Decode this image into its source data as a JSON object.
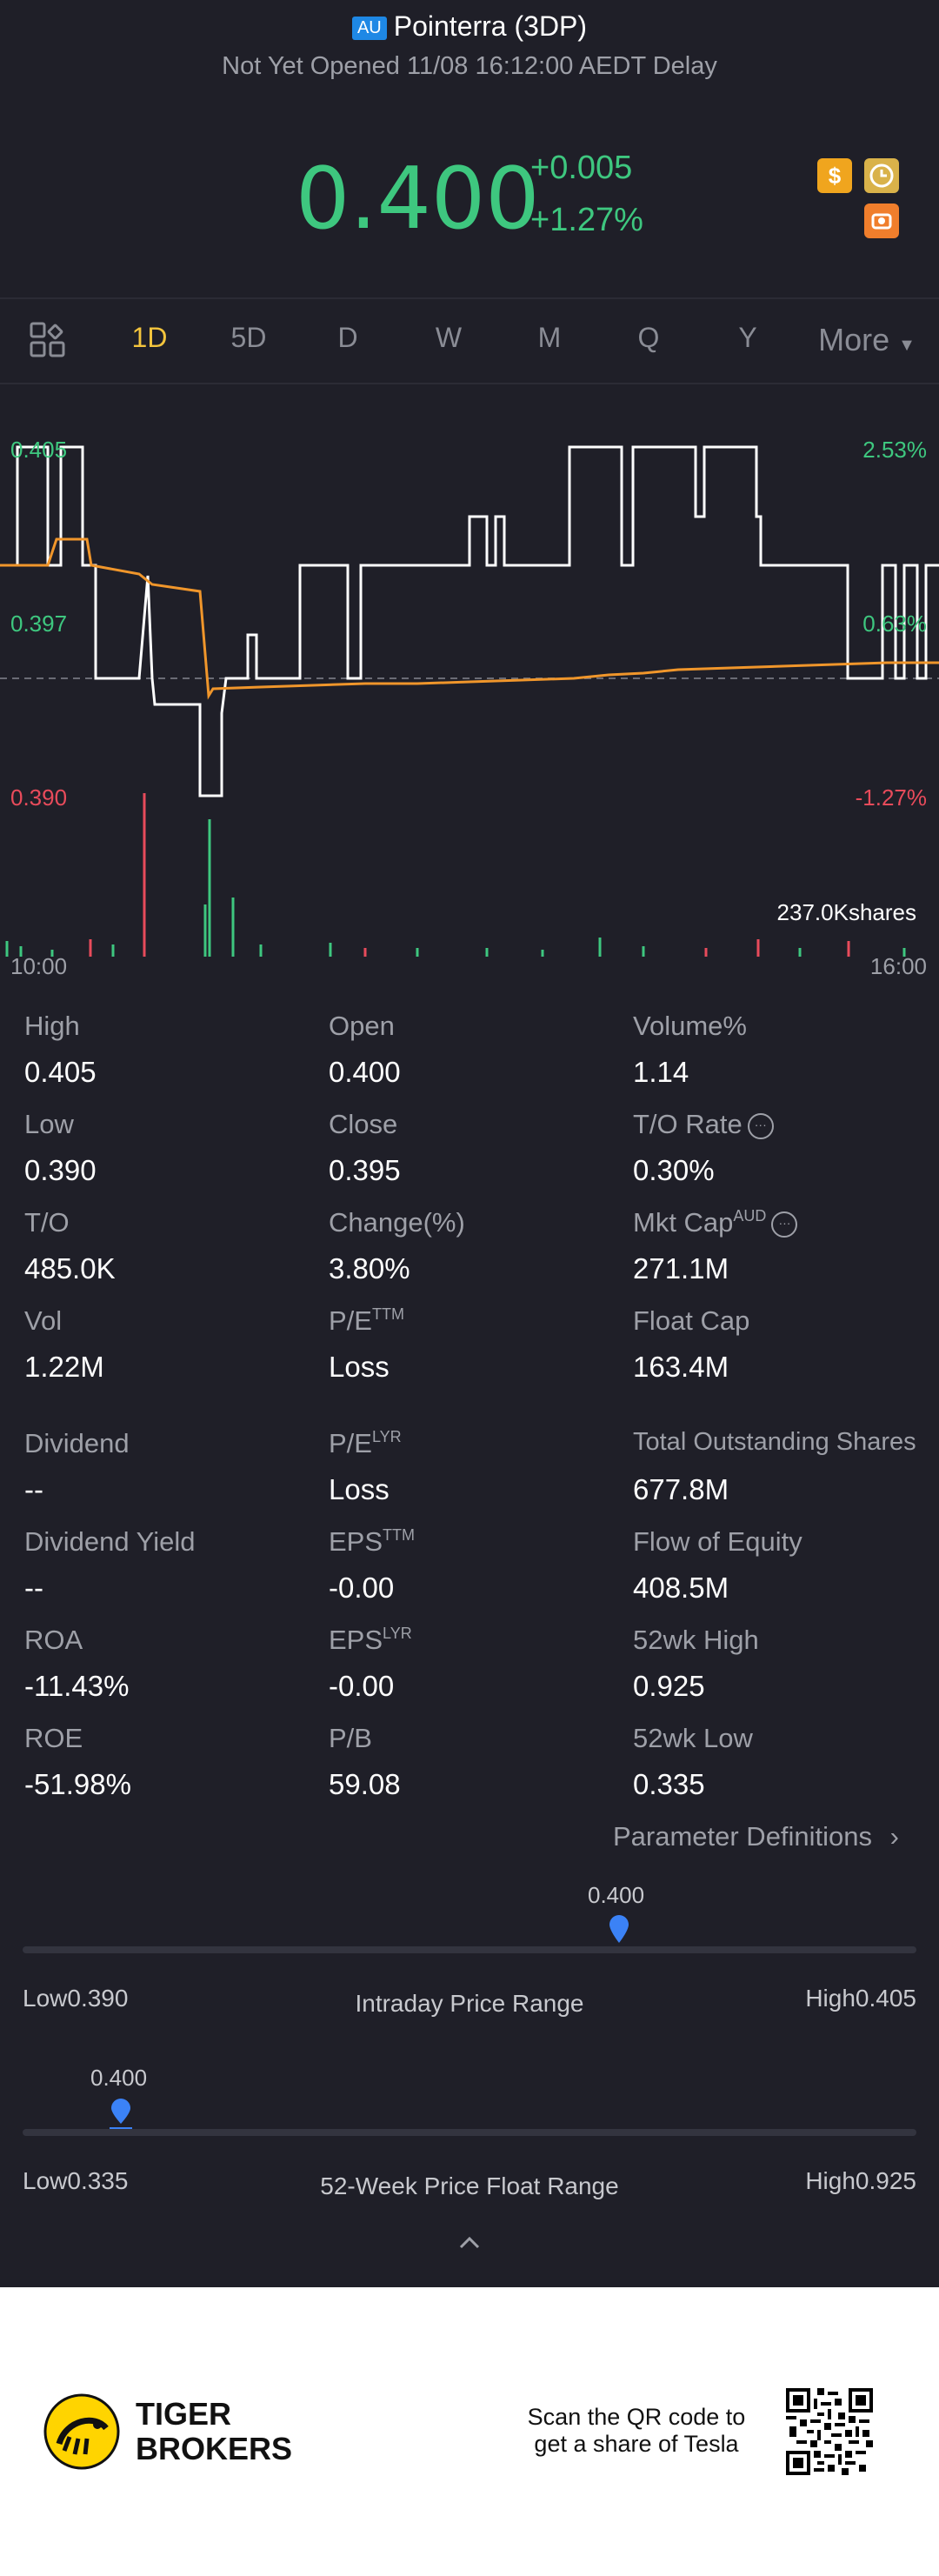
{
  "header": {
    "market_badge": "AU",
    "title": "Pointerra (3DP)",
    "status": "Not Yet Opened 11/08 16:12:00 AEDT Delay"
  },
  "quote": {
    "price": "0.400",
    "change": "+0.005",
    "change_pct": "+1.27%",
    "up_color": "#3ec77f",
    "icons": [
      "dollar-icon",
      "clock-icon",
      "camera-icon"
    ]
  },
  "tabs": {
    "items": [
      "1D",
      "5D",
      "D",
      "W",
      "M",
      "Q",
      "Y"
    ],
    "active": "1D",
    "more": "More"
  },
  "chart": {
    "left_top": "0.405",
    "left_mid": "0.397",
    "left_bottom": "0.390",
    "right_top": "2.53%",
    "right_mid": "0.63%",
    "right_bottom": "-1.27%",
    "volume_label": "237.0Kshares",
    "time_start": "10:00",
    "time_end": "16:00"
  },
  "chart_data": {
    "type": "line",
    "ylim": [
      0.39,
      0.405
    ],
    "series": [],
    "xlabel": "",
    "ylabel": ""
  },
  "stats": [
    {
      "label": "High",
      "value": "0.405"
    },
    {
      "label": "Open",
      "value": "0.400"
    },
    {
      "label": "Volume%",
      "value": "1.14"
    },
    {
      "label": "Low",
      "value": "0.390"
    },
    {
      "label": "Close",
      "value": "0.395"
    },
    {
      "label": "T/O Rate",
      "value": "0.30%"
    },
    {
      "label": "T/O",
      "value": "485.0K"
    },
    {
      "label": "Change(%)",
      "value": "3.80%"
    },
    {
      "label": "Mkt Cap",
      "sup": "AUD",
      "value": "271.1M"
    },
    {
      "label": "Vol",
      "value": "1.22M"
    },
    {
      "label": "P/E",
      "sup": "TTM",
      "value": "Loss"
    },
    {
      "label": "Float Cap",
      "value": "163.4M"
    },
    {
      "label": "Dividend",
      "value": "--"
    },
    {
      "label": "P/E",
      "sup": "LYR",
      "value": "Loss"
    },
    {
      "label": "Total Outstanding Shares",
      "value": "677.8M"
    },
    {
      "label": "Dividend Yield",
      "value": "--"
    },
    {
      "label": "EPS",
      "sup": "TTM",
      "value": "-0.00"
    },
    {
      "label": "Flow of Equity",
      "value": "408.5M"
    },
    {
      "label": "ROA",
      "value": "-11.43%"
    },
    {
      "label": "EPS",
      "sup": "LYR",
      "value": "-0.00"
    },
    {
      "label": "52wk High",
      "value": "0.925"
    },
    {
      "label": "ROE",
      "value": "-51.98%"
    },
    {
      "label": "P/B",
      "value": "59.08"
    },
    {
      "label": "52wk Low",
      "value": "0.335"
    }
  ],
  "param_link": "Parameter Definitions",
  "intraday": {
    "marker": "0.400",
    "low_label": "Low",
    "low": "0.390",
    "title": "Intraday Price Range",
    "high_label": "High",
    "high": "0.405",
    "position": 0.667
  },
  "week52": {
    "marker": "0.400",
    "low_label": "Low",
    "low": "0.335",
    "title": "52-Week Price Float Range",
    "high_label": "High",
    "high": "0.925",
    "position": 0.11
  },
  "footer": {
    "brand_line1": "TIGER",
    "brand_line2": "BROKERS",
    "scan_line1": "Scan the QR code to",
    "scan_line2": "get a share of Tesla"
  }
}
